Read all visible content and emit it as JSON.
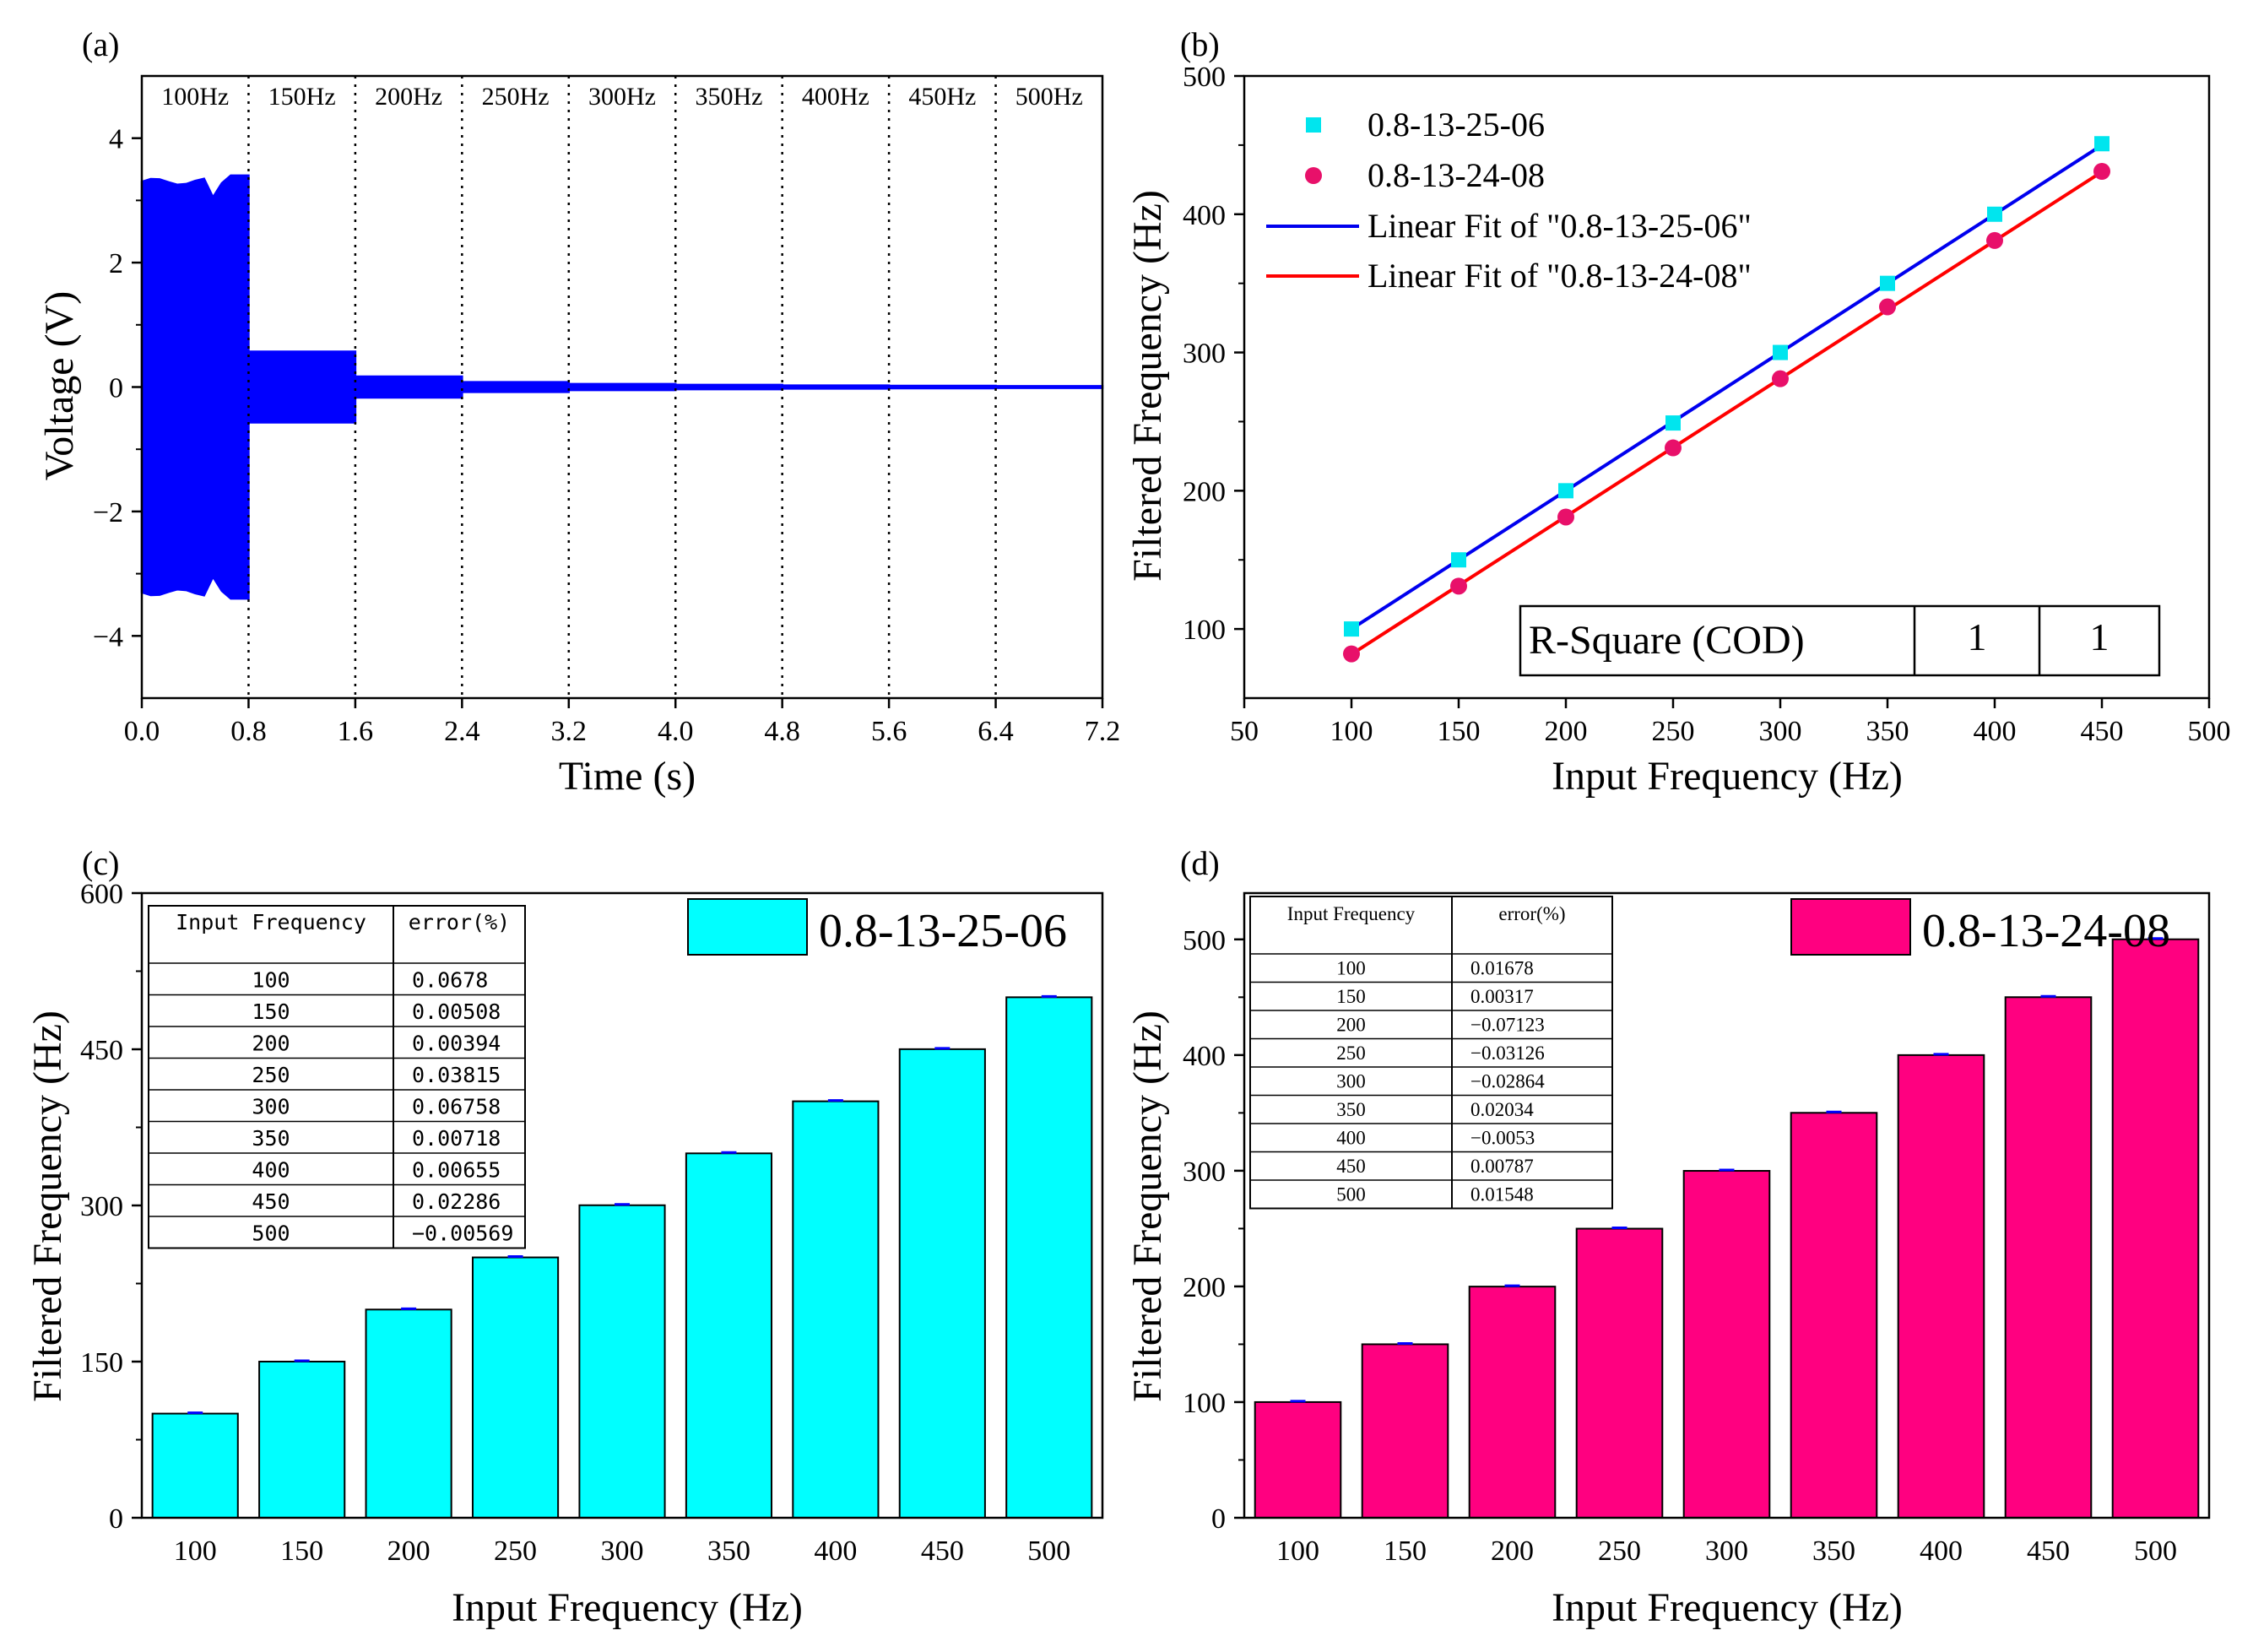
{
  "chart_data": [
    {
      "panel_label": "(a)",
      "type": "line",
      "title": "",
      "xlabel": "Time (s)",
      "ylabel": "Voltage (V)",
      "xlim": [
        0.0,
        7.2
      ],
      "ylim": [
        -5,
        5
      ],
      "xticks": [
        "0.0",
        "0.8",
        "1.6",
        "2.4",
        "3.2",
        "4.0",
        "4.8",
        "5.6",
        "6.4",
        "7.2"
      ],
      "yticks": [
        "−4",
        "−2",
        "0",
        "2",
        "4"
      ],
      "series_color": "#0000ff",
      "segments": [
        {
          "label": "100Hz",
          "t_start": 0.0,
          "t_end": 0.8,
          "amplitude": 3.3
        },
        {
          "label": "150Hz",
          "t_start": 0.8,
          "t_end": 1.6,
          "amplitude": 0.57
        },
        {
          "label": "200Hz",
          "t_start": 1.6,
          "t_end": 2.4,
          "amplitude": 0.17
        },
        {
          "label": "250Hz",
          "t_start": 2.4,
          "t_end": 3.2,
          "amplitude": 0.08
        },
        {
          "label": "300Hz",
          "t_start": 3.2,
          "t_end": 4.0,
          "amplitude": 0.05
        },
        {
          "label": "350Hz",
          "t_start": 4.0,
          "t_end": 4.8,
          "amplitude": 0.035
        },
        {
          "label": "400Hz",
          "t_start": 4.8,
          "t_end": 5.6,
          "amplitude": 0.025
        },
        {
          "label": "450Hz",
          "t_start": 5.6,
          "t_end": 6.4,
          "amplitude": 0.02
        },
        {
          "label": "500Hz",
          "t_start": 6.4,
          "t_end": 7.2,
          "amplitude": 0.015
        }
      ],
      "dividers": [
        0.8,
        1.6,
        2.4,
        3.2,
        4.0,
        4.8,
        5.6,
        6.4
      ]
    },
    {
      "panel_label": "(b)",
      "type": "scatter",
      "title": "",
      "xlabel": "Input Frequency (Hz)",
      "ylabel": "Filtered Frequency (Hz)",
      "xlim": [
        50,
        500
      ],
      "ylim": [
        50,
        500
      ],
      "xticks": [
        "50",
        "100",
        "150",
        "200",
        "250",
        "300",
        "350",
        "400",
        "450",
        "500"
      ],
      "yticks": [
        "100",
        "200",
        "300",
        "400",
        "500"
      ],
      "x": [
        100,
        150,
        200,
        250,
        300,
        350,
        400,
        450
      ],
      "series": [
        {
          "name": "0.8-13-25-06",
          "marker": "square",
          "color": "#00e5ee",
          "values": [
            100,
            150,
            200,
            249,
            300,
            350,
            400,
            451
          ]
        },
        {
          "name": "0.8-13-24-08",
          "marker": "circle",
          "color": "#e8106a",
          "values": [
            82,
            131,
            181,
            231,
            281,
            333,
            381,
            431
          ]
        }
      ],
      "fits": [
        {
          "name": "Linear Fit of \"0.8-13-25-06\"",
          "color": "#0000ee",
          "slope": 1.0,
          "intercept": 0
        },
        {
          "name": "Linear Fit of \"0.8-13-24-08\"",
          "color": "#ff0000",
          "slope": 0.997,
          "intercept": -18
        }
      ],
      "stats_table": {
        "label": "R-Square (COD)",
        "values": [
          "1",
          "1"
        ]
      }
    },
    {
      "panel_label": "(c)",
      "type": "bar",
      "title": "",
      "xlabel": "Input Frequency (Hz)",
      "ylabel": "Filtered Frequency (Hz)",
      "ylim": [
        0,
        600
      ],
      "yticks": [
        "0",
        "150",
        "300",
        "450",
        "600"
      ],
      "categories": [
        "100",
        "150",
        "200",
        "250",
        "300",
        "350",
        "400",
        "450",
        "500"
      ],
      "values": [
        100.07,
        150.01,
        200.01,
        250.1,
        300.2,
        350.03,
        400.03,
        450.1,
        499.97
      ],
      "color": "#00ffff",
      "legend": "0.8-13-25-06",
      "table": {
        "headers": [
          "Input Frequency",
          "error(%)"
        ],
        "rows": [
          [
            "100",
            "0.0678"
          ],
          [
            "150",
            "0.00508"
          ],
          [
            "200",
            "0.00394"
          ],
          [
            "250",
            "0.03815"
          ],
          [
            "300",
            "0.06758"
          ],
          [
            "350",
            "0.00718"
          ],
          [
            "400",
            "0.00655"
          ],
          [
            "450",
            "0.02286"
          ],
          [
            "500",
            "−0.00569"
          ]
        ]
      }
    },
    {
      "panel_label": "(d)",
      "type": "bar",
      "title": "",
      "xlabel": "Input Frequency (Hz)",
      "ylabel": "Filtered Frequency (Hz)",
      "ylim": [
        0,
        540
      ],
      "yticks": [
        "0",
        "100",
        "200",
        "300",
        "400",
        "500"
      ],
      "categories": [
        "100",
        "150",
        "200",
        "250",
        "300",
        "350",
        "400",
        "450",
        "500"
      ],
      "values": [
        100.02,
        150.0,
        199.86,
        249.92,
        299.91,
        350.07,
        399.98,
        450.04,
        500.08
      ],
      "color": "#ff0080",
      "legend": "0.8-13-24-08",
      "table": {
        "headers": [
          "Input Frequency",
          "error(%)"
        ],
        "rows": [
          [
            "100",
            "0.01678"
          ],
          [
            "150",
            "0.00317"
          ],
          [
            "200",
            "−0.07123"
          ],
          [
            "250",
            "−0.03126"
          ],
          [
            "300",
            "−0.02864"
          ],
          [
            "350",
            "0.02034"
          ],
          [
            "400",
            "−0.0053"
          ],
          [
            "450",
            "0.00787"
          ],
          [
            "500",
            "0.01548"
          ]
        ]
      }
    }
  ]
}
